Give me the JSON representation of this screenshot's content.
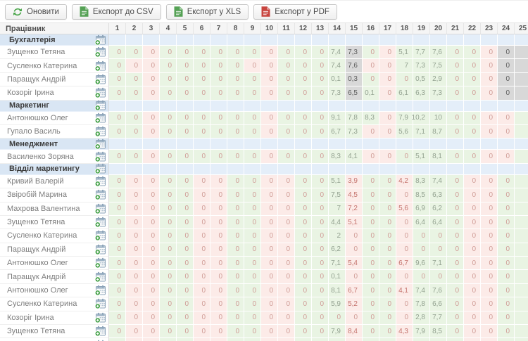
{
  "toolbar": {
    "refresh_label": "Оновити",
    "export_csv_label": "Експорт до CSV",
    "export_xls_label": "Експорт у XLS",
    "export_pdf_label": "Експорт у PDF"
  },
  "colors": {
    "refresh_icon": "#47a447",
    "csv_icon": "#55a155",
    "xls_icon": "#55a155",
    "pdf_icon": "#c8453f",
    "add_icon": "#43a047",
    "workday_cell": "#e9f4e3",
    "dayoff_cell": "#fcebe8",
    "gray_cell": "#d8d8d8",
    "group_row": "#e4eef9"
  },
  "table": {
    "employee_header": "Працівник",
    "days": [
      "1",
      "2",
      "3",
      "4",
      "5",
      "6",
      "7",
      "8",
      "9",
      "10",
      "11",
      "12",
      "13",
      "14",
      "15",
      "16",
      "17",
      "18",
      "19",
      "20",
      "21",
      "22",
      "23",
      "24",
      "25"
    ],
    "patterns": {
      "B1": "ggpggggggpggggygpgggggpyy",
      "B2": "gppgggggppggggyppgggggpyy",
      "M1": "ggpggggggpggggggpgggggppg",
      "M2": "ggpggggggpgggggppgggggppg",
      "V": "gppggppggppgggpggpgggppgg"
    },
    "rows": [
      {
        "type": "group",
        "name": "Бухгалтерія"
      },
      {
        "type": "emp",
        "name": "Зущенко Тетяна",
        "bg": "B1",
        "vals": {
          "14": "7,4",
          "15": "7,3",
          "18": "5,1",
          "19": "7,7",
          "20": "7,6"
        }
      },
      {
        "type": "emp",
        "name": "Сусленко Катерина",
        "bg": "B2",
        "vals": {
          "14": "7,4",
          "15": "7,6",
          "18": "7",
          "19": "7,3",
          "20": "7,5"
        }
      },
      {
        "type": "emp",
        "name": "Паращук Андрій",
        "bg": "B1",
        "vals": {
          "14": "0,1",
          "15": "0,3",
          "19": "0,5",
          "20": "2,9"
        }
      },
      {
        "type": "emp",
        "name": "Козоріг Ірина",
        "bg": "B1",
        "vals": {
          "14": "7,3",
          "15": "6,5",
          "16": "0,1",
          "18": "6,1",
          "19": "6,3",
          "20": "7,3"
        }
      },
      {
        "type": "group",
        "name": "Маркетинг"
      },
      {
        "type": "emp",
        "name": "Антонюшко Олег",
        "bg": "M1",
        "vals": {
          "14": "9,1",
          "15": "7,8",
          "16": "8,3",
          "18": "7,9",
          "19": "10,2",
          "20": "10"
        }
      },
      {
        "type": "emp",
        "name": "Гупало Василь",
        "bg": "M2",
        "vals": {
          "14": "6,7",
          "15": "7,3",
          "18": "5,6",
          "19": "7,1",
          "20": "8,7"
        }
      },
      {
        "type": "group",
        "name": "Менеджмент"
      },
      {
        "type": "emp",
        "name": "Василенко Зоряна",
        "bg": "M2",
        "vals": {
          "14": "8,3",
          "15": "4,1",
          "19": "5,1",
          "20": "8,1"
        }
      },
      {
        "type": "group",
        "name": "Відділ маркетингу"
      },
      {
        "type": "emp",
        "name": "Кривий Валерій",
        "bg": "V",
        "vals": {
          "14": "5,1",
          "15": "3,9",
          "18": "4,2",
          "19": "8,3",
          "20": "7,4"
        }
      },
      {
        "type": "emp",
        "name": "Звіробій Марина",
        "bg": "V",
        "vals": {
          "14": "7,5",
          "15": "4,5",
          "19": "8,5",
          "20": "6,3"
        }
      },
      {
        "type": "emp",
        "name": "Махрова Валентина",
        "bg": "V",
        "vals": {
          "14": "7",
          "15": "7,2",
          "18": "5,6",
          "19": "6,9",
          "20": "6,2"
        }
      },
      {
        "type": "emp",
        "name": "Зущенко Тетяна",
        "bg": "V",
        "vals": {
          "14": "4,4",
          "15": "5,1",
          "19": "6,4",
          "20": "6,4"
        }
      },
      {
        "type": "emp",
        "name": "Сусленко Катерина",
        "bg": "V",
        "vals": {
          "14": "2"
        }
      },
      {
        "type": "emp",
        "name": "Паращук Андрій",
        "bg": "V",
        "vals": {
          "14": "6,2"
        }
      },
      {
        "type": "emp",
        "name": "Антонюшко Олег",
        "bg": "V",
        "vals": {
          "14": "7,1",
          "15": "5,4",
          "18": "6,7",
          "19": "9,6",
          "20": "7,1"
        }
      },
      {
        "type": "emp",
        "name": "Паращук Андрій",
        "bg": "V",
        "vals": {
          "14": "0,1"
        }
      },
      {
        "type": "emp",
        "name": "Антонюшко Олег",
        "bg": "V",
        "vals": {
          "14": "8,1",
          "15": "6,7",
          "18": "4,1",
          "19": "7,4",
          "20": "7,6"
        }
      },
      {
        "type": "emp",
        "name": "Сусленко Катерина",
        "bg": "V",
        "vals": {
          "14": "5,9",
          "15": "5,2",
          "19": "7,8",
          "20": "6,6"
        }
      },
      {
        "type": "emp",
        "name": "Козоріг Ірина",
        "bg": "V",
        "vals": {
          "19": "2,8",
          "20": "7,7"
        }
      },
      {
        "type": "emp",
        "name": "Зущенко Тетяна",
        "bg": "V",
        "vals": {
          "14": "7,9",
          "15": "8,4",
          "18": "4,3",
          "19": "7,9",
          "20": "8,5"
        }
      },
      {
        "type": "emp",
        "name": "",
        "bg": "V",
        "vals": {}
      }
    ]
  }
}
